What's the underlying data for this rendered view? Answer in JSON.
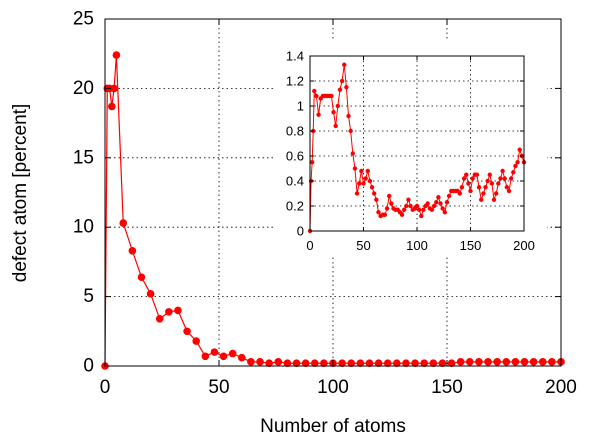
{
  "chart_data": [
    {
      "type": "line",
      "xlabel": "Number of atoms",
      "ylabel": "defect atom [percent]",
      "xlim": [
        0,
        200
      ],
      "ylim": [
        0,
        25
      ],
      "xticks": [
        0,
        50,
        100,
        150,
        200
      ],
      "yticks": [
        0,
        5,
        10,
        15,
        20,
        25
      ],
      "grid": "dotted",
      "color": "#ff0000",
      "series": [
        {
          "x": [
            0,
            1,
            2,
            3,
            4,
            5,
            8,
            12,
            16,
            20,
            24,
            28,
            32,
            36,
            40,
            44,
            48,
            52,
            56,
            60,
            64,
            68,
            72,
            76,
            80,
            84,
            88,
            92,
            96,
            100,
            104,
            108,
            112,
            116,
            120,
            124,
            128,
            132,
            136,
            140,
            144,
            148,
            152,
            156,
            160,
            164,
            168,
            172,
            176,
            180,
            184,
            188,
            192,
            196,
            200
          ],
          "values": [
            0,
            20.0,
            20.0,
            18.7,
            20.0,
            22.4,
            10.3,
            8.3,
            6.4,
            5.2,
            3.4,
            3.9,
            4.0,
            2.5,
            1.8,
            0.7,
            1.0,
            0.7,
            0.9,
            0.6,
            0.3,
            0.3,
            0.2,
            0.3,
            0.2,
            0.2,
            0.2,
            0.2,
            0.2,
            0.2,
            0.2,
            0.2,
            0.2,
            0.2,
            0.2,
            0.2,
            0.2,
            0.2,
            0.2,
            0.2,
            0.2,
            0.2,
            0.2,
            0.3,
            0.3,
            0.3,
            0.3,
            0.3,
            0.3,
            0.3,
            0.3,
            0.3,
            0.3,
            0.3,
            0.3
          ]
        }
      ]
    },
    {
      "type": "line",
      "xlabel": "",
      "ylabel": "",
      "xlim": [
        0,
        200
      ],
      "ylim": [
        0,
        1.4
      ],
      "xticks": [
        0,
        50,
        100,
        150,
        200
      ],
      "yticks": [
        0,
        0.2,
        0.4,
        0.6,
        0.8,
        1,
        1.2,
        1.4
      ],
      "grid": "dotted",
      "color": "#ff0000",
      "series": [
        {
          "x": [
            0,
            1,
            2,
            3,
            4,
            6,
            8,
            10,
            12,
            14,
            16,
            18,
            20,
            22,
            24,
            26,
            28,
            30,
            32,
            34,
            36,
            38,
            40,
            42,
            44,
            46,
            48,
            50,
            52,
            54,
            56,
            58,
            60,
            62,
            64,
            66,
            68,
            70,
            72,
            74,
            76,
            78,
            80,
            82,
            84,
            86,
            88,
            90,
            92,
            94,
            96,
            98,
            100,
            102,
            104,
            106,
            108,
            110,
            112,
            114,
            116,
            118,
            120,
            122,
            124,
            126,
            128,
            130,
            132,
            134,
            136,
            138,
            140,
            142,
            144,
            146,
            148,
            150,
            152,
            154,
            156,
            158,
            160,
            162,
            164,
            166,
            168,
            170,
            172,
            174,
            176,
            178,
            180,
            182,
            184,
            186,
            188,
            190,
            192,
            194,
            196,
            198,
            200
          ],
          "values": [
            0,
            0.4,
            0.55,
            0.8,
            1.12,
            1.08,
            0.93,
            1.06,
            1.08,
            1.08,
            1.08,
            1.08,
            1.08,
            0.95,
            0.84,
            1.0,
            1.13,
            1.2,
            1.33,
            1.15,
            0.92,
            0.8,
            0.62,
            0.5,
            0.3,
            0.38,
            0.48,
            0.38,
            0.42,
            0.48,
            0.4,
            0.35,
            0.3,
            0.25,
            0.15,
            0.12,
            0.13,
            0.13,
            0.18,
            0.28,
            0.22,
            0.18,
            0.17,
            0.17,
            0.15,
            0.13,
            0.17,
            0.2,
            0.25,
            0.2,
            0.17,
            0.18,
            0.2,
            0.17,
            0.12,
            0.17,
            0.2,
            0.22,
            0.18,
            0.17,
            0.2,
            0.23,
            0.27,
            0.22,
            0.18,
            0.15,
            0.23,
            0.28,
            0.32,
            0.32,
            0.32,
            0.32,
            0.3,
            0.35,
            0.42,
            0.45,
            0.38,
            0.32,
            0.42,
            0.45,
            0.45,
            0.35,
            0.25,
            0.3,
            0.35,
            0.4,
            0.45,
            0.38,
            0.25,
            0.3,
            0.38,
            0.42,
            0.48,
            0.42,
            0.35,
            0.32,
            0.42,
            0.47,
            0.52,
            0.55,
            0.65,
            0.6,
            0.55
          ]
        }
      ]
    }
  ]
}
